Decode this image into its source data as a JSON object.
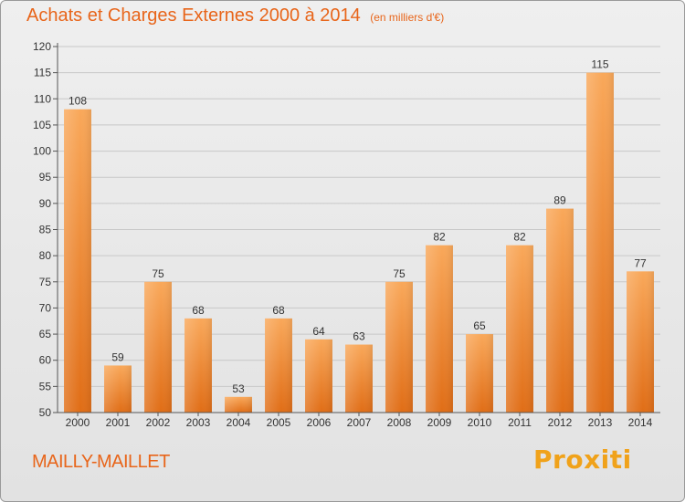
{
  "page": {
    "title": "Achats et Charges Externes 2000 à 2014",
    "subtitle": "(en milliers d'€)",
    "commune": "MAILLY-MAILLET",
    "logo": "Proxiti"
  },
  "colors": {
    "title": "#e8651a",
    "bar_light": "#f9a85a",
    "bar_dark": "#e06d16",
    "axis": "#555555",
    "gridline": "#c8c8c8",
    "logo_blue": "#2f9ad8",
    "logo_orange": "#f0a21a"
  },
  "chart_data": {
    "type": "bar",
    "title": "Achats et Charges Externes 2000 à 2014",
    "subtitle": "(en milliers d'€)",
    "categories": [
      "2000",
      "2001",
      "2002",
      "2003",
      "2004",
      "2005",
      "2006",
      "2007",
      "2008",
      "2009",
      "2010",
      "2011",
      "2012",
      "2013",
      "2014"
    ],
    "values": [
      108,
      59,
      75,
      68,
      53,
      68,
      64,
      63,
      75,
      82,
      65,
      82,
      89,
      115,
      77
    ],
    "ylim": [
      50,
      120
    ],
    "yticks": [
      50,
      55,
      60,
      65,
      70,
      75,
      80,
      85,
      90,
      95,
      100,
      105,
      110,
      115,
      120
    ],
    "grid": true,
    "legend": "none"
  }
}
